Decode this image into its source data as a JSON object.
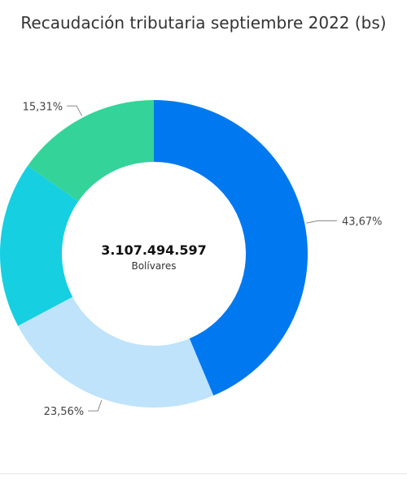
{
  "chart_data": {
    "type": "pie",
    "title": "Recaudación tributaria septiembre 2022 (bs)",
    "center": {
      "value": "3.107.494.597",
      "unit": "Bolívares"
    },
    "slices": [
      {
        "value": 43.67,
        "label": "43,67%",
        "color": "#0078EF"
      },
      {
        "value": 23.56,
        "label": "23,56%",
        "color": "#BEE3FA"
      },
      {
        "value": 17.46,
        "label": "",
        "color": "#16CFE0"
      },
      {
        "value": 15.31,
        "label": "15,31%",
        "color": "#34D399"
      }
    ]
  }
}
